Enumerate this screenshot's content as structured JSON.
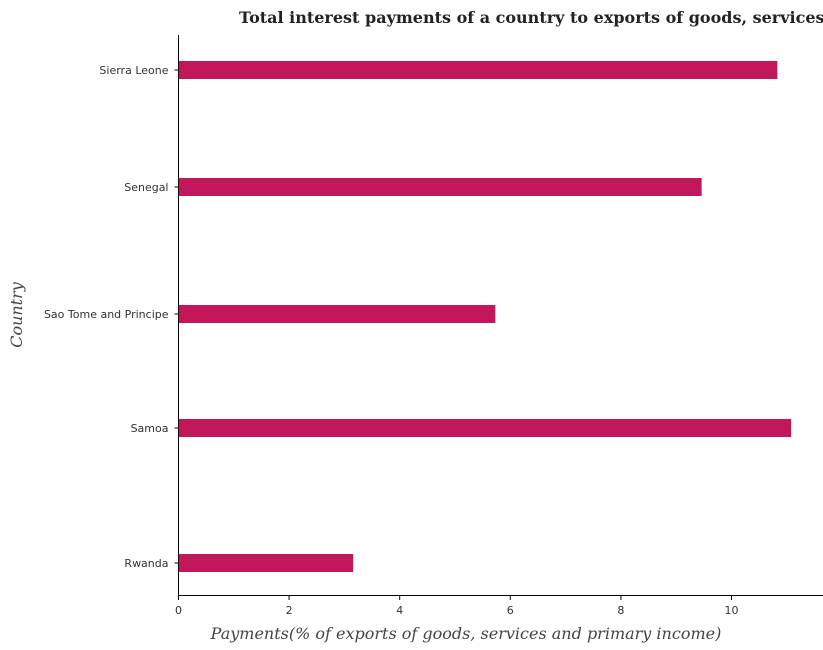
{
  "chart_data": {
    "type": "bar",
    "orientation": "horizontal",
    "title": "Total interest payments of a country to exports of goods, services and primary income",
    "xlabel": "Payments(% of exports of goods, services and primary income)",
    "ylabel": "Country",
    "categories": [
      "Rwanda",
      "Samoa",
      "Sao Tome and Principe",
      "Senegal",
      "Sierra Leone"
    ],
    "values": [
      3.16,
      11.08,
      5.73,
      9.46,
      10.83
    ],
    "xlim": [
      0,
      11.7
    ],
    "xticks": [
      0,
      2,
      4,
      6,
      8,
      10
    ],
    "bar_color": "#c2185b",
    "grid": false,
    "legend": "none"
  }
}
